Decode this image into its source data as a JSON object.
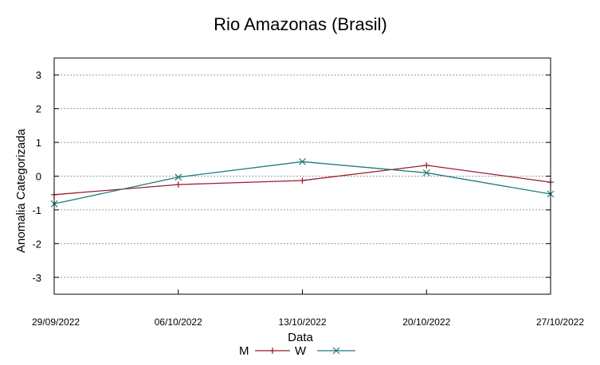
{
  "chart_data": {
    "type": "line",
    "title": "Rio Amazonas (Brasil)",
    "xlabel": "Data",
    "ylabel": "Anomalia Categorizada",
    "categories": [
      "29/09/2022",
      "06/10/2022",
      "13/10/2022",
      "20/10/2022",
      "27/10/2022"
    ],
    "ylim": [
      -3.5,
      3.5
    ],
    "yticks": [
      -3,
      -2,
      -1,
      0,
      1,
      2,
      3
    ],
    "grid": true,
    "legend_position": "bottom-center",
    "series": [
      {
        "name": "M",
        "color": "#9b1c2e",
        "marker": "plus",
        "values": [
          -0.55,
          -0.25,
          -0.13,
          0.32,
          -0.18
        ]
      },
      {
        "name": "W",
        "color": "#1f7a7a",
        "marker": "x",
        "values": [
          -0.82,
          -0.03,
          0.43,
          0.1,
          -0.53
        ]
      }
    ]
  }
}
